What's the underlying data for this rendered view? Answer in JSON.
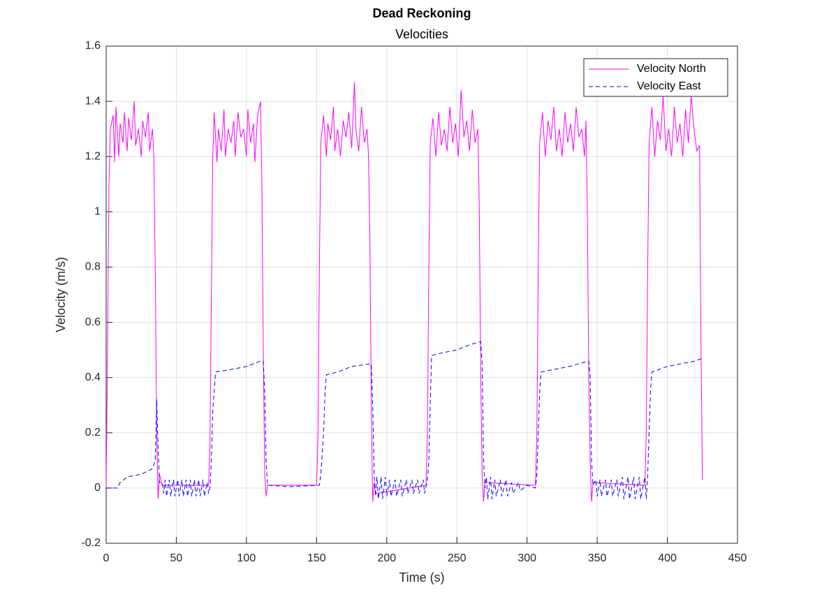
{
  "chart_data": {
    "type": "line",
    "title": "Dead Reckoning",
    "subtitle": "Velocities",
    "x_label": "Time (s)",
    "y_label": "Velocity (m/s)",
    "xlim": [
      0,
      450
    ],
    "xticks": [
      0,
      50,
      100,
      150,
      200,
      250,
      300,
      350,
      400,
      450
    ],
    "ylim": [
      -0.2,
      1.6
    ],
    "yticks": [
      -0.2,
      0,
      0.2,
      0.4,
      0.6,
      0.8,
      1,
      1.2,
      1.4,
      1.6
    ],
    "grid": true,
    "legend": "northeast",
    "series": [
      {
        "name": "Velocity North",
        "color": "#ff00ff",
        "dash": "solid",
        "x": [
          0,
          1,
          2,
          3,
          5,
          6,
          7,
          9,
          10,
          12,
          13,
          15,
          16,
          18,
          20,
          21,
          23,
          25,
          26,
          28,
          30,
          31,
          33,
          34,
          35,
          36,
          37,
          38,
          40,
          73,
          74,
          75,
          76,
          77,
          79,
          80,
          82,
          84,
          85,
          87,
          89,
          91,
          92,
          94,
          96,
          98,
          100,
          101,
          103,
          105,
          106,
          108,
          110,
          111,
          112,
          113,
          114,
          115,
          150,
          151,
          152,
          153,
          155,
          157,
          158,
          160,
          162,
          163,
          165,
          167,
          169,
          171,
          173,
          175,
          177,
          178,
          180,
          182,
          184,
          186,
          187,
          188,
          189,
          190,
          191,
          192,
          228,
          229,
          230,
          231,
          233,
          235,
          237,
          239,
          241,
          243,
          245,
          247,
          249,
          251,
          253,
          255,
          257,
          259,
          261,
          263,
          265,
          266,
          267,
          268,
          269,
          270,
          306,
          307,
          308,
          309,
          311,
          313,
          315,
          317,
          319,
          321,
          323,
          325,
          327,
          329,
          331,
          333,
          335,
          337,
          339,
          341,
          342,
          343,
          344,
          345,
          346,
          347,
          384,
          385,
          386,
          387,
          389,
          391,
          393,
          395,
          397,
          399,
          401,
          403,
          405,
          407,
          409,
          411,
          413,
          415,
          417,
          419,
          421,
          423,
          424,
          425
        ],
        "values": [
          0,
          0.5,
          1.1,
          1.3,
          1.35,
          1.18,
          1.38,
          1.2,
          1.32,
          1.25,
          1.36,
          1.22,
          1.34,
          1.26,
          1.4,
          1.24,
          1.3,
          1.2,
          1.33,
          1.27,
          1.36,
          1.22,
          1.3,
          1.2,
          0.8,
          0.2,
          -0.04,
          0.05,
          0.01,
          0.01,
          0.15,
          0.7,
          1.2,
          1.36,
          1.18,
          1.3,
          1.22,
          1.37,
          1.2,
          1.3,
          1.25,
          1.33,
          1.2,
          1.36,
          1.27,
          1.3,
          1.2,
          1.37,
          1.25,
          1.32,
          1.18,
          1.35,
          1.4,
          1.1,
          0.5,
          0.05,
          -0.03,
          0.01,
          0.01,
          0.2,
          0.8,
          1.25,
          1.35,
          1.2,
          1.32,
          1.26,
          1.38,
          1.22,
          1.3,
          1.2,
          1.33,
          1.27,
          1.36,
          1.23,
          1.47,
          1.3,
          1.22,
          1.38,
          1.25,
          1.3,
          1.2,
          0.9,
          0.3,
          -0.05,
          0.02,
          -0.02,
          0.01,
          0.2,
          0.8,
          1.25,
          1.34,
          1.2,
          1.36,
          1.24,
          1.3,
          1.22,
          1.38,
          1.25,
          1.32,
          1.2,
          1.44,
          1.27,
          1.33,
          1.22,
          1.37,
          1.25,
          1.3,
          1.0,
          0.4,
          0.05,
          -0.05,
          0.02,
          0.01,
          0.2,
          0.8,
          1.25,
          1.36,
          1.2,
          1.33,
          1.26,
          1.38,
          1.22,
          1.3,
          1.2,
          1.36,
          1.25,
          1.32,
          1.22,
          1.38,
          1.27,
          1.3,
          1.2,
          1.33,
          1.0,
          0.4,
          0.1,
          -0.05,
          0.02,
          0.01,
          0.2,
          0.8,
          1.25,
          1.38,
          1.2,
          1.33,
          1.26,
          1.42,
          1.22,
          1.3,
          1.2,
          1.38,
          1.25,
          1.32,
          1.2,
          1.37,
          1.25,
          1.42,
          1.3,
          1.22,
          1.24,
          0.5,
          0.03
        ]
      },
      {
        "name": "Velocity East",
        "color": "#0000ff",
        "dash": "dashed",
        "x": [
          0,
          8,
          10,
          15,
          25,
          33,
          35,
          36,
          37,
          38,
          40,
          41,
          42,
          43,
          45,
          46,
          48,
          49,
          51,
          52,
          54,
          55,
          57,
          58,
          60,
          61,
          63,
          64,
          66,
          67,
          69,
          70,
          72,
          73,
          74,
          75,
          76,
          77,
          78,
          90,
          100,
          110,
          112,
          113,
          114,
          115,
          130,
          152,
          153,
          155,
          156,
          157,
          165,
          175,
          189,
          190,
          191,
          192,
          193,
          194,
          196,
          197,
          199,
          200,
          202,
          203,
          206,
          207,
          210,
          211,
          214,
          215,
          218,
          219,
          222,
          223,
          226,
          227,
          229,
          230,
          231,
          232,
          240,
          250,
          260,
          267,
          268,
          269,
          270,
          271,
          272,
          274,
          275,
          277,
          278,
          281,
          282,
          285,
          286,
          289,
          290,
          294,
          295,
          300,
          306,
          307,
          308,
          309,
          310,
          320,
          330,
          344,
          345,
          346,
          347,
          349,
          350,
          352,
          353,
          356,
          357,
          360,
          361,
          364,
          365,
          368,
          369,
          372,
          373,
          376,
          377,
          380,
          381,
          384,
          385,
          386,
          387,
          388,
          389,
          400,
          410,
          420,
          425
        ],
        "values": [
          0,
          0,
          0.02,
          0.04,
          0.05,
          0.07,
          0.1,
          0.32,
          0.15,
          0.02,
          0.02,
          -0.02,
          0.03,
          -0.03,
          0.03,
          -0.03,
          0.03,
          -0.03,
          0.03,
          -0.03,
          0.03,
          -0.03,
          0.03,
          -0.03,
          0.03,
          -0.03,
          0.03,
          -0.03,
          0.03,
          -0.03,
          0.03,
          -0.03,
          0.02,
          -0.02,
          0,
          0.1,
          0.28,
          0.35,
          0.42,
          0.43,
          0.44,
          0.46,
          0.46,
          0.35,
          0.1,
          0.01,
          0.005,
          0.01,
          0.05,
          0.2,
          0.35,
          0.41,
          0.42,
          0.44,
          0.45,
          0.3,
          0.05,
          -0.03,
          0.04,
          -0.04,
          0.04,
          -0.04,
          0.04,
          -0.03,
          0.03,
          -0.03,
          0.03,
          -0.03,
          0.03,
          -0.03,
          0.03,
          -0.02,
          0.03,
          -0.02,
          0.03,
          -0.02,
          0.03,
          -0.02,
          0.03,
          0.1,
          0.3,
          0.48,
          0.49,
          0.5,
          0.52,
          0.53,
          0.45,
          0.1,
          0,
          0.04,
          -0.04,
          0.04,
          -0.04,
          0.03,
          -0.03,
          0.03,
          -0.03,
          0.03,
          -0.03,
          0.02,
          -0.02,
          0.02,
          -0.01,
          0.01,
          0,
          0.05,
          0.2,
          0.35,
          0.42,
          0.43,
          0.44,
          0.46,
          0.4,
          0.1,
          0.01,
          0.03,
          -0.03,
          0.03,
          -0.03,
          0.03,
          -0.03,
          0.03,
          -0.03,
          0.03,
          -0.03,
          0.04,
          -0.04,
          0.04,
          -0.04,
          0.04,
          -0.04,
          0.04,
          -0.04,
          0.04,
          -0.04,
          0.05,
          0.2,
          0.35,
          0.42,
          0.44,
          0.45,
          0.46,
          0.47
        ]
      }
    ]
  }
}
